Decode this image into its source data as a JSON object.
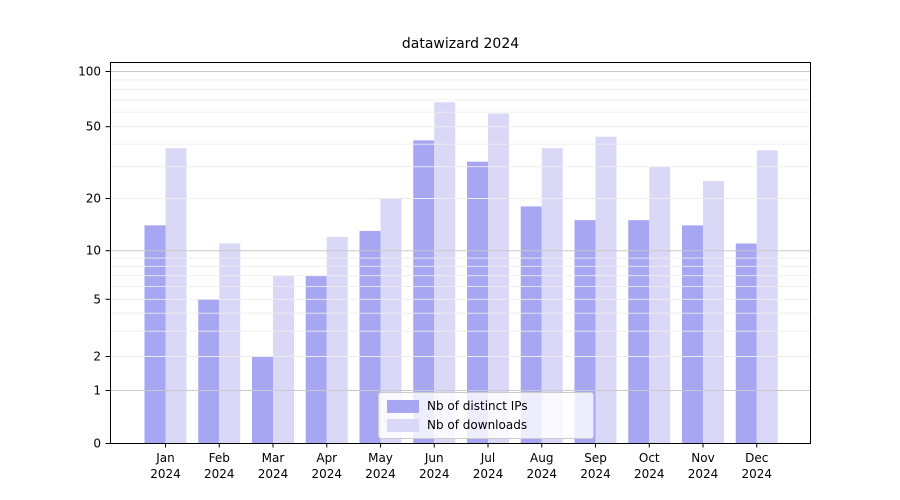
{
  "chart_data": {
    "type": "bar",
    "title": "datawizard 2024",
    "categories": [
      "Jan",
      "Feb",
      "Mar",
      "Apr",
      "May",
      "Jun",
      "Jul",
      "Aug",
      "Sep",
      "Oct",
      "Nov",
      "Dec"
    ],
    "x_year_label": "2024",
    "series": [
      {
        "name": "Nb of distinct IPs",
        "color": "#a6a6f2",
        "values": [
          14,
          5,
          2,
          7,
          13,
          42,
          32,
          18,
          15,
          15,
          14,
          11
        ]
      },
      {
        "name": "Nb of downloads",
        "color": "#d9d9f7",
        "values": [
          38,
          11,
          7,
          12,
          20,
          68,
          59,
          38,
          44,
          30,
          25,
          37
        ]
      }
    ],
    "yticks": [
      0,
      1,
      2,
      5,
      10,
      20,
      50,
      100
    ],
    "ylim": [
      0,
      100
    ],
    "yscale": "log-like",
    "grid": true,
    "legend_position": "bottom-center",
    "colors": {
      "major_grid": "#c9c9c9",
      "minor_grid": "#ededed",
      "axis": "#000000",
      "background": "#ffffff"
    }
  }
}
